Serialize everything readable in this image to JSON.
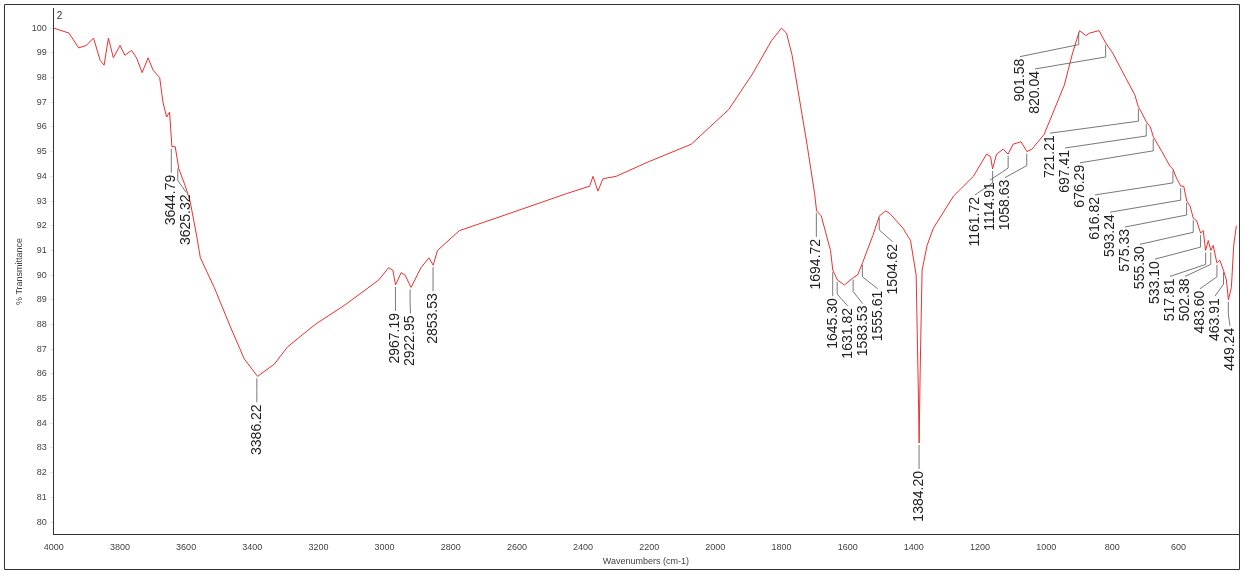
{
  "chart_data": {
    "type": "line",
    "xlabel": "Wavenumbers (cm-1)",
    "ylabel": "% Transmittance",
    "xlim": [
      4000,
      420
    ],
    "ylim": [
      79.5,
      100.8
    ],
    "xticks": [
      4000,
      3800,
      3600,
      3400,
      3200,
      3000,
      2800,
      2600,
      2400,
      2200,
      2000,
      1800,
      1600,
      1400,
      1200,
      1000,
      800,
      600
    ],
    "yticks": [
      80,
      81,
      82,
      83,
      84,
      85,
      86,
      87,
      88,
      89,
      90,
      91,
      92,
      93,
      94,
      95,
      96,
      97,
      98,
      99,
      100
    ],
    "x": [
      4000,
      3954,
      3925,
      3902,
      3880,
      3860,
      3848,
      3835,
      3820,
      3800,
      3785,
      3765,
      3750,
      3733,
      3715,
      3700,
      3680,
      3670,
      3659,
      3650,
      3643,
      3633,
      3622,
      3605,
      3588,
      3567,
      3557,
      3515,
      3466,
      3424,
      3384,
      3333,
      3293,
      3210,
      3119,
      3018,
      2988,
      2975,
      2967,
      2950,
      2938,
      2920,
      2890,
      2866,
      2853,
      2840,
      2774,
      2600,
      2450,
      2380,
      2370,
      2355,
      2340,
      2300,
      2200,
      2073,
      1960,
      1890,
      1830,
      1800,
      1785,
      1768,
      1723,
      1700,
      1694,
      1680,
      1652,
      1645,
      1631,
      1610,
      1583,
      1570,
      1555,
      1524,
      1504,
      1485,
      1473,
      1433,
      1410,
      1393,
      1386,
      1384,
      1381,
      1375,
      1360,
      1341,
      1280,
      1220,
      1180,
      1168,
      1162,
      1150,
      1130,
      1115,
      1100,
      1076,
      1058,
      1043,
      1006,
      945,
      920,
      899,
      880,
      869,
      840,
      820,
      799,
      760,
      732,
      721,
      712,
      697,
      685,
      676,
      650,
      625,
      617,
      605,
      593,
      584,
      575,
      565,
      555,
      545,
      533,
      525,
      518,
      510,
      502,
      495,
      484,
      475,
      464,
      455,
      449,
      440,
      433,
      425
    ],
    "series": [
      {
        "color": "#e8322f",
        "values": [
          100,
          99.8,
          99.2,
          99.3,
          99.6,
          98.7,
          98.5,
          99.6,
          98.8,
          99.3,
          98.9,
          99.1,
          98.8,
          98.2,
          98.8,
          98.3,
          98.0,
          97.0,
          96.4,
          96.6,
          95.2,
          95.2,
          94.3,
          93.7,
          93.0,
          91.5,
          90.7,
          89.5,
          87.9,
          86.6,
          85.9,
          86.4,
          87.1,
          88.0,
          88.8,
          89.8,
          90.3,
          90.2,
          89.6,
          90.1,
          90.0,
          89.5,
          90.3,
          90.7,
          90.4,
          91.0,
          91.8,
          92.6,
          93.3,
          93.6,
          94.0,
          93.4,
          93.9,
          94.0,
          94.6,
          95.3,
          96.7,
          98.1,
          99.5,
          100,
          99.8,
          98.9,
          95.3,
          93.3,
          92.6,
          92.4,
          91.0,
          90.2,
          89.8,
          89.6,
          89.9,
          90.0,
          90.5,
          91.6,
          92.4,
          92.6,
          92.5,
          91.9,
          91.4,
          90.0,
          85,
          83.2,
          86,
          90.2,
          91.2,
          91.9,
          93.2,
          94.0,
          94.9,
          94.8,
          94.3,
          94.9,
          95.1,
          94.9,
          95.3,
          95.4,
          95.0,
          95.1,
          95.7,
          97.7,
          99.0,
          99.9,
          99.7,
          99.8,
          99.9,
          99.4,
          99.0,
          98.0,
          97.3,
          96.8,
          96.6,
          96.2,
          96.0,
          95.6,
          95.0,
          94.4,
          94.3,
          93.9,
          93.6,
          93.6,
          93.0,
          92.8,
          92.3,
          92.2,
          91.7,
          91.8,
          91.0,
          91.4,
          91.0,
          91.2,
          90.5,
          90.6,
          90.2,
          89.8,
          89.0,
          89.5,
          91.2,
          92.0
        ]
      }
    ],
    "annotations": [
      "2",
      {
        "text": "3644.79",
        "x": 3644.79,
        "y": 95.2
      },
      {
        "text": "3625.32",
        "x": 3625.32,
        "y": 94.4
      },
      {
        "text": "3386.22",
        "x": 3386.22,
        "y": 85.9
      },
      {
        "text": "2967.19",
        "x": 2967.19,
        "y": 89.6
      },
      {
        "text": "2922.95",
        "x": 2922.95,
        "y": 89.5
      },
      {
        "text": "2853.53",
        "x": 2853.53,
        "y": 90.4
      },
      {
        "text": "1694.72",
        "x": 1694.72,
        "y": 92.6
      },
      {
        "text": "1645.30",
        "x": 1645.3,
        "y": 90.2
      },
      {
        "text": "1631.82",
        "x": 1631.82,
        "y": 89.8
      },
      {
        "text": "1583.53",
        "x": 1583.53,
        "y": 89.9
      },
      {
        "text": "1555.61",
        "x": 1555.61,
        "y": 90.5
      },
      {
        "text": "1504.62",
        "x": 1504.62,
        "y": 92.4
      },
      {
        "text": "1384.20",
        "x": 1384.2,
        "y": 83.2
      },
      {
        "text": "1161.72",
        "x": 1161.72,
        "y": 94.3
      },
      {
        "text": "1114.91",
        "x": 1114.91,
        "y": 94.9
      },
      {
        "text": "1058.63",
        "x": 1058.63,
        "y": 95.0
      },
      {
        "text": "901.58",
        "x": 901.58,
        "y": 99.9
      },
      {
        "text": "820.04",
        "x": 820.04,
        "y": 99.4
      },
      {
        "text": "721.21",
        "x": 721.21,
        "y": 96.8
      },
      {
        "text": "697.41",
        "x": 697.41,
        "y": 96.2
      },
      {
        "text": "676.29",
        "x": 676.29,
        "y": 95.6
      },
      {
        "text": "616.82",
        "x": 616.82,
        "y": 94.3
      },
      {
        "text": "593.24",
        "x": 593.24,
        "y": 93.6
      },
      {
        "text": "575.33",
        "x": 575.33,
        "y": 93.0
      },
      {
        "text": "555.30",
        "x": 555.3,
        "y": 92.3
      },
      {
        "text": "533.10",
        "x": 533.1,
        "y": 91.7
      },
      {
        "text": "517.81",
        "x": 517.81,
        "y": 91.0
      },
      {
        "text": "502.38",
        "x": 502.38,
        "y": 91.0
      },
      {
        "text": "483.60",
        "x": 483.6,
        "y": 90.5
      },
      {
        "text": "463.91",
        "x": 463.91,
        "y": 90.2
      },
      {
        "text": "449.24",
        "x": 449.24,
        "y": 89.0
      }
    ]
  }
}
